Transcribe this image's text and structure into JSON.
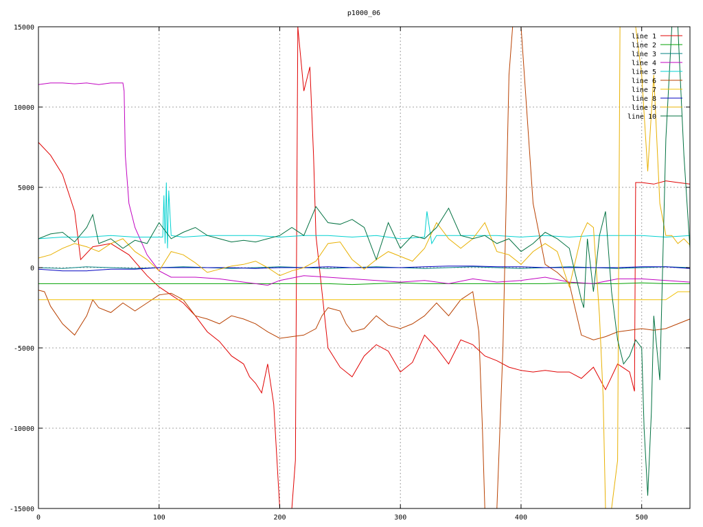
{
  "chart_data": {
    "type": "line",
    "title": "p1000_06",
    "xlabel": "",
    "ylabel": "",
    "xlim": [
      0,
      540
    ],
    "ylim": [
      -15000,
      15000
    ],
    "x_ticks": [
      0,
      100,
      200,
      300,
      400,
      500
    ],
    "y_ticks": [
      -15000,
      -10000,
      -5000,
      0,
      5000,
      10000,
      15000
    ],
    "grid": true,
    "legend_position": "top-right",
    "series": [
      {
        "name": "line 1",
        "color": "#e00000",
        "x": [
          0,
          10,
          20,
          30,
          35,
          45,
          60,
          75,
          90,
          100,
          110,
          120,
          130,
          140,
          150,
          160,
          170,
          175,
          180,
          185,
          190,
          195,
          200,
          205,
          210,
          213,
          215,
          220,
          225,
          228,
          230,
          240,
          250,
          260,
          270,
          280,
          290,
          300,
          310,
          320,
          330,
          340,
          350,
          360,
          370,
          380,
          390,
          400,
          410,
          420,
          430,
          440,
          450,
          460,
          470,
          480,
          490,
          494,
          495,
          500,
          510,
          520,
          530,
          540
        ],
        "y": [
          7800,
          7000,
          5800,
          3500,
          500,
          1300,
          1500,
          800,
          -500,
          -1200,
          -1700,
          -2200,
          -3000,
          -4000,
          -4600,
          -5500,
          -6000,
          -6800,
          -7200,
          -7800,
          -6000,
          -8500,
          -15000,
          -15000,
          -15000,
          -12000,
          15000,
          11000,
          12500,
          7000,
          2000,
          -5000,
          -6200,
          -6800,
          -5500,
          -4800,
          -5200,
          -6500,
          -5900,
          -4200,
          -5000,
          -6000,
          -4500,
          -4800,
          -5500,
          -5800,
          -6200,
          -6400,
          -6500,
          -6400,
          -6500,
          -6500,
          -6900,
          -6200,
          -7600,
          -6000,
          -6500,
          -7700,
          5300,
          5300,
          5200,
          5400,
          5300,
          5200
        ]
      },
      {
        "name": "line 2",
        "color": "#00a000",
        "x": [
          0,
          20,
          40,
          60,
          80,
          100,
          120,
          140,
          160,
          180,
          200,
          220,
          240,
          260,
          280,
          300,
          320,
          340,
          360,
          380,
          400,
          420,
          440,
          460,
          480,
          500,
          520,
          540
        ],
        "y": [
          -1000,
          -1000,
          -1000,
          -1000,
          -1000,
          -1000,
          -1000,
          -1000,
          -1000,
          -1000,
          -1000,
          -1000,
          -1000,
          -1050,
          -1000,
          -950,
          -1000,
          -1000,
          -1000,
          -1000,
          -1000,
          -1000,
          -950,
          -1000,
          -1000,
          -950,
          -1000,
          -1000
        ]
      },
      {
        "name": "line 3",
        "color": "#008080",
        "x": [
          0,
          20,
          40,
          60,
          80,
          100,
          120,
          140,
          160,
          180,
          200,
          220,
          240,
          260,
          280,
          300,
          320,
          340,
          360,
          380,
          400,
          420,
          440,
          460,
          480,
          500,
          520,
          540
        ],
        "y": [
          0,
          -50,
          50,
          0,
          -50,
          0,
          50,
          0,
          -50,
          0,
          50,
          0,
          -50,
          0,
          50,
          0,
          -50,
          0,
          50,
          0,
          -50,
          0,
          50,
          0,
          -50,
          0,
          50,
          0
        ]
      },
      {
        "name": "line 4",
        "color": "#c000c0",
        "x": [
          0,
          10,
          20,
          30,
          40,
          50,
          60,
          70,
          71,
          72,
          75,
          80,
          90,
          100,
          110,
          130,
          150,
          170,
          190,
          200,
          220,
          240,
          260,
          280,
          300,
          320,
          340,
          360,
          380,
          400,
          420,
          440,
          460,
          480,
          500,
          520,
          540
        ],
        "y": [
          11400,
          11500,
          11500,
          11450,
          11500,
          11400,
          11500,
          11500,
          11000,
          7000,
          4000,
          2500,
          800,
          -200,
          -600,
          -600,
          -700,
          -900,
          -1100,
          -800,
          -500,
          -600,
          -700,
          -800,
          -900,
          -800,
          -1000,
          -700,
          -900,
          -800,
          -600,
          -900,
          -1000,
          -700,
          -700,
          -800,
          -900
        ]
      },
      {
        "name": "line 5",
        "color": "#00d0d0",
        "x": [
          0,
          20,
          40,
          60,
          80,
          100,
          103,
          104,
          105,
          106,
          107,
          108,
          110,
          120,
          140,
          160,
          180,
          200,
          220,
          240,
          260,
          280,
          300,
          320,
          322,
          324,
          326,
          330,
          340,
          360,
          380,
          400,
          420,
          440,
          460,
          480,
          500,
          520,
          540
        ],
        "y": [
          1800,
          1900,
          1900,
          2000,
          1900,
          1900,
          1900,
          4500,
          1500,
          5300,
          1200,
          4800,
          2000,
          1900,
          2000,
          2000,
          2000,
          1900,
          2000,
          2000,
          1900,
          2000,
          1800,
          1900,
          3500,
          2500,
          1500,
          2000,
          2000,
          2000,
          2000,
          1900,
          2000,
          1900,
          2000,
          2000,
          2000,
          1900,
          2000
        ]
      },
      {
        "name": "line 6",
        "color": "#b84000",
        "x": [
          0,
          5,
          10,
          20,
          30,
          40,
          45,
          50,
          60,
          70,
          80,
          90,
          100,
          110,
          120,
          130,
          140,
          150,
          160,
          170,
          180,
          190,
          200,
          210,
          220,
          230,
          235,
          240,
          250,
          255,
          260,
          270,
          280,
          290,
          300,
          310,
          320,
          330,
          340,
          350,
          360,
          365,
          368,
          370,
          375,
          380,
          385,
          390,
          393,
          400,
          410,
          420,
          430,
          440,
          450,
          460,
          470,
          480,
          490,
          500,
          510,
          520,
          530,
          540
        ],
        "y": [
          -1400,
          -1500,
          -2400,
          -3500,
          -4200,
          -3000,
          -2000,
          -2500,
          -2800,
          -2200,
          -2700,
          -2200,
          -1700,
          -1600,
          -2000,
          -3000,
          -3200,
          -3500,
          -3000,
          -3200,
          -3500,
          -4000,
          -4400,
          -4300,
          -4200,
          -3800,
          -3000,
          -2500,
          -2700,
          -3500,
          -4000,
          -3800,
          -3000,
          -3600,
          -3800,
          -3500,
          -3000,
          -2200,
          -3000,
          -2000,
          -1500,
          -4000,
          -10000,
          -15000,
          -15000,
          -15000,
          -5000,
          12000,
          15000,
          15000,
          4000,
          200,
          -300,
          -1000,
          -4200,
          -4500,
          -4300,
          -4000,
          -3900,
          -3800,
          -3900,
          -3800,
          -3500,
          -3200
        ]
      },
      {
        "name": "line 7",
        "color": "#f0c000",
        "x": [
          0,
          20,
          40,
          60,
          80,
          100,
          120,
          140,
          160,
          180,
          200,
          220,
          240,
          260,
          280,
          300,
          320,
          340,
          360,
          380,
          400,
          420,
          440,
          460,
          480,
          500,
          510,
          520,
          530,
          540
        ],
        "y": [
          -2000,
          -2000,
          -2000,
          -2000,
          -2000,
          -2000,
          -2000,
          -2000,
          -2000,
          -2000,
          -2000,
          -2000,
          -2000,
          -2000,
          -2000,
          -2000,
          -2000,
          -2000,
          -2000,
          -2000,
          -2000,
          -2000,
          -2000,
          -2000,
          -2000,
          -2000,
          -2000,
          -2000,
          -1500,
          -1500
        ]
      },
      {
        "name": "line 8",
        "color": "#0000c0",
        "x": [
          0,
          20,
          40,
          60,
          80,
          100,
          120,
          140,
          160,
          180,
          200,
          220,
          240,
          260,
          280,
          300,
          320,
          340,
          360,
          380,
          400,
          420,
          440,
          460,
          480,
          500,
          520,
          540
        ],
        "y": [
          -100,
          -200,
          -200,
          -100,
          -100,
          0,
          0,
          0,
          0,
          -50,
          0,
          0,
          50,
          0,
          0,
          0,
          50,
          100,
          100,
          50,
          50,
          0,
          0,
          0,
          0,
          50,
          50,
          -50
        ]
      },
      {
        "name": "line 9",
        "color": "#e8b000",
        "x": [
          0,
          10,
          20,
          30,
          40,
          50,
          60,
          70,
          80,
          90,
          100,
          110,
          120,
          130,
          140,
          150,
          160,
          170,
          180,
          190,
          200,
          210,
          220,
          230,
          240,
          250,
          260,
          270,
          280,
          290,
          300,
          310,
          320,
          330,
          340,
          350,
          360,
          370,
          380,
          390,
          400,
          410,
          420,
          430,
          440,
          450,
          455,
          460,
          465,
          468,
          470,
          475,
          480,
          482,
          485,
          490,
          495,
          500,
          505,
          510,
          515,
          520,
          525,
          530,
          535,
          540
        ],
        "y": [
          600,
          800,
          1200,
          1500,
          1300,
          1000,
          1500,
          1800,
          1000,
          500,
          -200,
          1000,
          800,
          300,
          -300,
          -100,
          100,
          200,
          400,
          0,
          -500,
          -200,
          0,
          400,
          1500,
          1600,
          500,
          -100,
          500,
          1000,
          700,
          400,
          1200,
          2800,
          1800,
          1200,
          1800,
          2800,
          1000,
          800,
          200,
          1000,
          1500,
          1000,
          -1200,
          2000,
          2800,
          2500,
          -3000,
          -8000,
          -15000,
          -15000,
          -12000,
          15000,
          15000,
          15000,
          15000,
          12000,
          6000,
          12000,
          4000,
          2000,
          2000,
          1500,
          1800,
          1400
        ]
      },
      {
        "name": "line 10",
        "color": "#007040",
        "x": [
          0,
          10,
          20,
          30,
          40,
          45,
          50,
          60,
          70,
          80,
          90,
          100,
          110,
          120,
          130,
          140,
          150,
          160,
          170,
          180,
          190,
          200,
          210,
          220,
          230,
          240,
          250,
          260,
          270,
          280,
          290,
          300,
          310,
          320,
          330,
          340,
          350,
          360,
          370,
          380,
          390,
          400,
          410,
          420,
          430,
          440,
          450,
          452,
          455,
          460,
          465,
          470,
          475,
          480,
          485,
          490,
          495,
          500,
          502,
          505,
          508,
          510,
          515,
          520,
          525,
          530,
          535,
          540
        ],
        "y": [
          1800,
          2100,
          2200,
          1600,
          2500,
          3300,
          1500,
          1800,
          1200,
          1700,
          1500,
          2800,
          1800,
          2200,
          2500,
          2000,
          1800,
          1600,
          1700,
          1600,
          1800,
          2000,
          2500,
          2000,
          3800,
          2800,
          2700,
          3000,
          2500,
          500,
          2800,
          1200,
          2000,
          1800,
          2500,
          3700,
          2000,
          1800,
          2000,
          1500,
          1800,
          1000,
          1500,
          2200,
          1800,
          1200,
          -2000,
          -2500,
          1800,
          -1500,
          2000,
          3500,
          -1500,
          -4500,
          -6000,
          -5500,
          -4500,
          -5000,
          -10000,
          -14200,
          -9000,
          -3000,
          -7000,
          8000,
          15000,
          15000,
          7000,
          1200
        ]
      }
    ]
  }
}
